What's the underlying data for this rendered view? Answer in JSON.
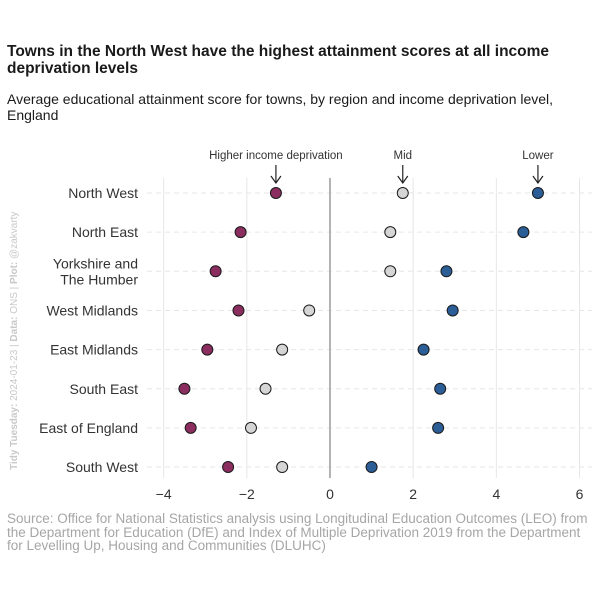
{
  "title": "Towns in the North West have the highest attainment scores at all income deprivation levels",
  "subtitle": "Average educational attainment score for towns, by region and income deprivation level, England",
  "caption": "Source: Office for National Statistics analysis using Longitudinal Education Outcomes (LEO) from the Department for Education (DfE) and Index of Multiple Deprivation 2019 from the Department for Levelling Up, Housing and Communities (DLUHC)",
  "side_label": {
    "prefix": "Tidy Tuesday:",
    "date": " 2024-01-23 | ",
    "data_label": "Data:",
    "data_source": " ONS | ",
    "plot_label": "Plot:",
    "author": " @zakvarty"
  },
  "colors": {
    "higher": "#8b2e5f",
    "mid": "#d5d5d5",
    "lower": "#2b5d96",
    "zero_line": "#b3b3b3",
    "grid": "#e6e6e6"
  },
  "chart_data": {
    "type": "scatter",
    "xlim": [
      -4.4,
      6.3
    ],
    "xticks": [
      -4,
      -2,
      0,
      2,
      4,
      6
    ],
    "categories": [
      "North West",
      "North East",
      "Yorkshire and\nThe Humber",
      "West Midlands",
      "East Midlands",
      "South East",
      "East of England",
      "South West"
    ],
    "series": [
      {
        "name": "Higher income deprivation",
        "key": "higher",
        "values": [
          -1.3,
          -2.15,
          -2.75,
          -2.2,
          -2.95,
          -3.5,
          -3.35,
          -2.45
        ]
      },
      {
        "name": "Mid",
        "key": "mid",
        "values": [
          1.75,
          1.45,
          1.45,
          -0.5,
          -1.15,
          -1.55,
          -1.9,
          -1.15
        ]
      },
      {
        "name": "Lower",
        "key": "lower",
        "values": [
          5.0,
          4.65,
          2.8,
          2.95,
          2.25,
          2.65,
          2.6,
          1.0
        ]
      }
    ],
    "annotations": [
      {
        "label": "Higher income deprivation",
        "x": -1.3,
        "category": "North West"
      },
      {
        "label": "Mid",
        "x": 1.75,
        "category": "North West"
      },
      {
        "label": "Lower",
        "x": 5.0,
        "category": "North West"
      }
    ],
    "xlabel": "",
    "ylabel": ""
  }
}
